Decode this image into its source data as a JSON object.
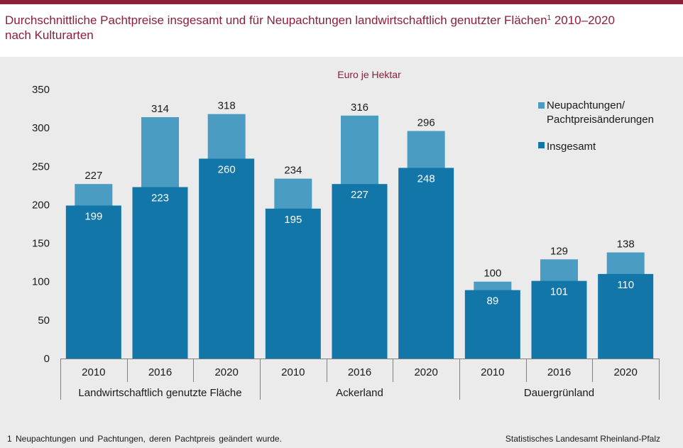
{
  "title": {
    "text_part1": "Durchschnittliche Pachtpreise insgesamt und für Neupachtungen landwirtschaftlich genutzter Flächen",
    "footnote_ref": "1",
    "text_part2": " 2010–2020",
    "line2": "nach Kulturarten"
  },
  "footnote": "1 Neupachtungen und Pachtungen, deren Pachtpreis geändert wurde.",
  "source": "Statistisches Landesamt Rheinland-Pfalz",
  "colors": {
    "brand": "#8b1f3a",
    "series_new": "#4a9cc2",
    "series_total": "#1276a8",
    "panel": "#ebebeb"
  },
  "chart_data": {
    "type": "bar",
    "unit_label": "Euro je Hektar",
    "ylim": [
      0,
      350
    ],
    "yticks": [
      0,
      50,
      100,
      150,
      200,
      250,
      300,
      350
    ],
    "grid": false,
    "legend_position": "top-right",
    "groups": [
      {
        "label": "Landwirtschaftlich genutzte Fläche",
        "categories": [
          "2010",
          "2016",
          "2020"
        ]
      },
      {
        "label": "Ackerland",
        "categories": [
          "2010",
          "2016",
          "2020"
        ]
      },
      {
        "label": "Dauergrünland",
        "categories": [
          "2010",
          "2016",
          "2020"
        ]
      }
    ],
    "series": [
      {
        "name": "Neupachtungen/ Pachtpreisänderungen",
        "legend_lines": [
          "Neupachtungen/",
          "Pachtpreisänderungen"
        ],
        "values": [
          227,
          314,
          318,
          234,
          316,
          296,
          100,
          129,
          138
        ]
      },
      {
        "name": "Insgesamt",
        "legend_lines": [
          "Insgesamt"
        ],
        "values": [
          199,
          223,
          260,
          195,
          227,
          248,
          89,
          101,
          110
        ]
      }
    ]
  }
}
